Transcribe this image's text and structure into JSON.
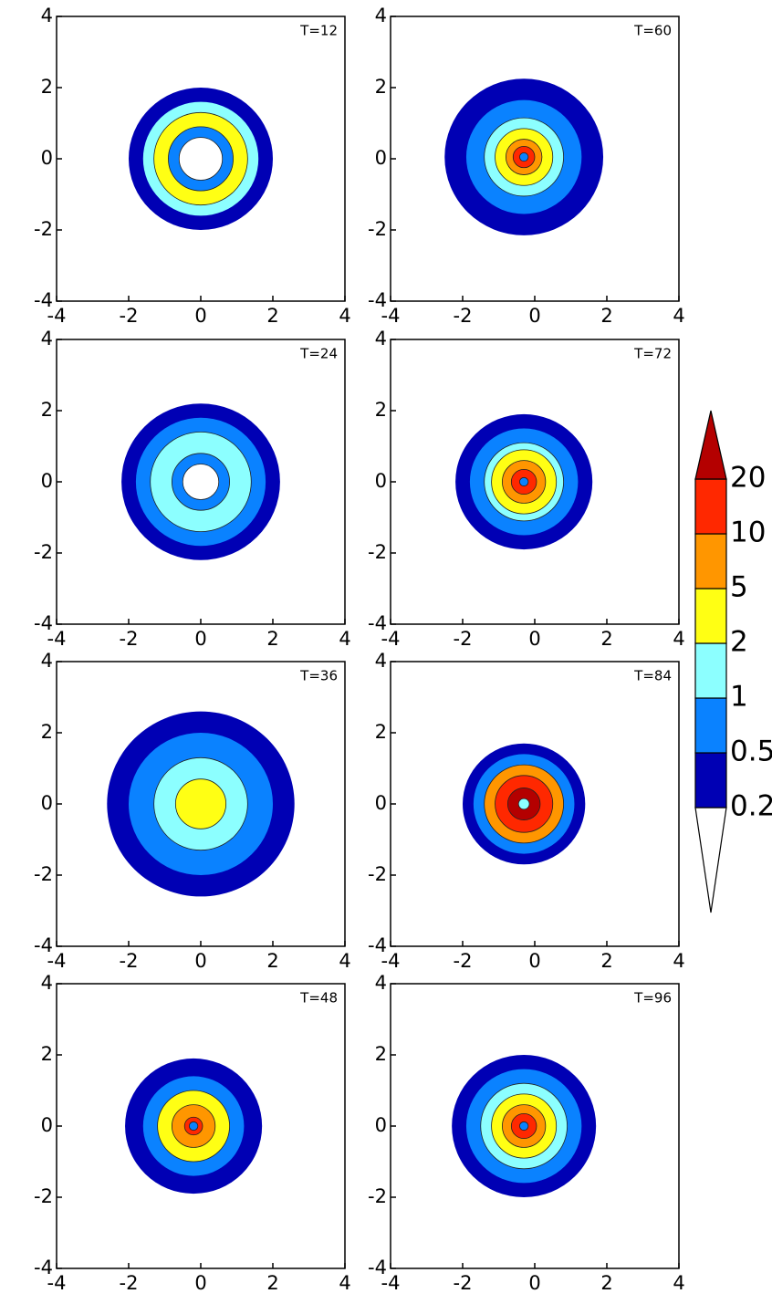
{
  "chart_data": [
    {
      "type": "contour",
      "title": "T=12",
      "xlim": [
        -4,
        4
      ],
      "ylim": [
        -4,
        4
      ],
      "xticks": [
        -4,
        -2,
        0,
        2,
        4
      ],
      "yticks": [
        -4,
        -2,
        0,
        2,
        4
      ],
      "center": [
        0,
        0
      ],
      "rings": [
        {
          "radius": 2.0,
          "value": 0.3
        },
        {
          "radius": 1.6,
          "value": 1.5
        },
        {
          "radius": 1.3,
          "value": 3
        },
        {
          "radius": 0.9,
          "value": 0.7
        },
        {
          "radius": 0.6,
          "value": 0.1
        }
      ]
    },
    {
      "type": "contour",
      "title": "T=60",
      "xlim": [
        -4,
        4
      ],
      "ylim": [
        -4,
        4
      ],
      "xticks": [
        -4,
        -2,
        0,
        2,
        4
      ],
      "yticks": [
        -4,
        -2,
        0,
        2,
        4
      ],
      "center": [
        -0.3,
        0.05
      ],
      "rings": [
        {
          "radius": 2.2,
          "value": 0.3
        },
        {
          "radius": 1.6,
          "value": 0.7
        },
        {
          "radius": 1.1,
          "value": 1.5
        },
        {
          "radius": 0.8,
          "value": 3
        },
        {
          "radius": 0.5,
          "value": 7
        },
        {
          "radius": 0.3,
          "value": 15
        },
        {
          "radius": 0.12,
          "value": 0.7
        }
      ]
    },
    {
      "type": "contour",
      "title": "T=24",
      "xlim": [
        -4,
        4
      ],
      "ylim": [
        -4,
        4
      ],
      "xticks": [
        -4,
        -2,
        0,
        2,
        4
      ],
      "yticks": [
        -4,
        -2,
        0,
        2,
        4
      ],
      "center": [
        0,
        0
      ],
      "rings": [
        {
          "radius": 2.2,
          "value": 0.3
        },
        {
          "radius": 1.8,
          "value": 0.7
        },
        {
          "radius": 1.4,
          "value": 1.5
        },
        {
          "radius": 0.8,
          "value": 0.7
        },
        {
          "radius": 0.5,
          "value": 0.1
        }
      ]
    },
    {
      "type": "contour",
      "title": "T=72",
      "xlim": [
        -4,
        4
      ],
      "ylim": [
        -4,
        4
      ],
      "xticks": [
        -4,
        -2,
        0,
        2,
        4
      ],
      "yticks": [
        -4,
        -2,
        0,
        2,
        4
      ],
      "center": [
        -0.3,
        0
      ],
      "rings": [
        {
          "radius": 1.9,
          "value": 0.3
        },
        {
          "radius": 1.5,
          "value": 0.7
        },
        {
          "radius": 1.1,
          "value": 1.5
        },
        {
          "radius": 0.9,
          "value": 3
        },
        {
          "radius": 0.6,
          "value": 7
        },
        {
          "radius": 0.35,
          "value": 15
        },
        {
          "radius": 0.12,
          "value": 0.7
        }
      ]
    },
    {
      "type": "contour",
      "title": "T=36",
      "xlim": [
        -4,
        4
      ],
      "ylim": [
        -4,
        4
      ],
      "xticks": [
        -4,
        -2,
        0,
        2,
        4
      ],
      "yticks": [
        -4,
        -2,
        0,
        2,
        4
      ],
      "center": [
        0,
        0
      ],
      "rings": [
        {
          "radius": 2.6,
          "value": 0.3
        },
        {
          "radius": 2.0,
          "value": 0.7
        },
        {
          "radius": 1.3,
          "value": 1.5
        },
        {
          "radius": 0.7,
          "value": 3
        }
      ]
    },
    {
      "type": "contour",
      "title": "T=84",
      "xlim": [
        -4,
        4
      ],
      "ylim": [
        -4,
        4
      ],
      "xticks": [
        -4,
        -2,
        0,
        2,
        4
      ],
      "yticks": [
        -4,
        -2,
        0,
        2,
        4
      ],
      "center": [
        -0.3,
        0
      ],
      "rings": [
        {
          "radius": 1.7,
          "value": 0.3
        },
        {
          "radius": 1.4,
          "value": 0.7
        },
        {
          "radius": 1.1,
          "value": 7
        },
        {
          "radius": 0.8,
          "value": 15
        },
        {
          "radius": 0.45,
          "value": 25
        },
        {
          "radius": 0.15,
          "value": 1.5
        }
      ]
    },
    {
      "type": "contour",
      "title": "T=48",
      "xlim": [
        -4,
        4
      ],
      "ylim": [
        -4,
        4
      ],
      "xticks": [
        -4,
        -2,
        0,
        2,
        4
      ],
      "yticks": [
        -4,
        -2,
        0,
        2,
        4
      ],
      "center": [
        -0.2,
        0
      ],
      "rings": [
        {
          "radius": 1.9,
          "value": 0.3
        },
        {
          "radius": 1.4,
          "value": 0.7
        },
        {
          "radius": 1.0,
          "value": 3
        },
        {
          "radius": 0.6,
          "value": 7
        },
        {
          "radius": 0.25,
          "value": 15
        },
        {
          "radius": 0.12,
          "value": 0.7
        }
      ]
    },
    {
      "type": "contour",
      "title": "T=96",
      "xlim": [
        -4,
        4
      ],
      "ylim": [
        -4,
        4
      ],
      "xticks": [
        -4,
        -2,
        0,
        2,
        4
      ],
      "yticks": [
        -4,
        -2,
        0,
        2,
        4
      ],
      "center": [
        -0.3,
        0
      ],
      "rings": [
        {
          "radius": 2.0,
          "value": 0.3
        },
        {
          "radius": 1.6,
          "value": 0.7
        },
        {
          "radius": 1.2,
          "value": 1.5
        },
        {
          "radius": 0.9,
          "value": 3
        },
        {
          "radius": 0.6,
          "value": 7
        },
        {
          "radius": 0.35,
          "value": 15
        },
        {
          "radius": 0.12,
          "value": 0.7
        }
      ]
    },
    {
      "type": "colorbar",
      "levels": [
        0.2,
        0.5,
        1,
        2,
        5,
        10,
        20
      ],
      "colors": [
        "#ffffff",
        "#0000b4",
        "#0a82ff",
        "#8cffff",
        "#ffff14",
        "#ff9600",
        "#ff2800",
        "#b40000"
      ]
    }
  ]
}
